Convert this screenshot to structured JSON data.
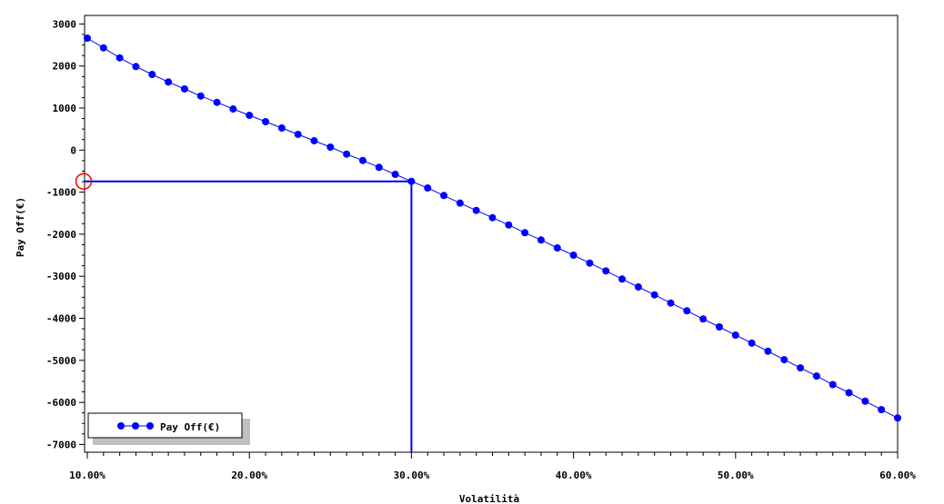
{
  "chart_data": {
    "type": "line",
    "title": "",
    "xlabel": "Volatilità",
    "ylabel": "Pay Off(€)",
    "xlim": [
      9.9,
      60
    ],
    "ylim": [
      -7100,
      3200
    ],
    "x_ticks": [
      10,
      20,
      30,
      40,
      50,
      60
    ],
    "x_tick_labels": [
      "10.00%",
      "20.00%",
      "30.00%",
      "40.00%",
      "50.00%",
      "60.00%"
    ],
    "y_ticks": [
      3000,
      2000,
      1000,
      0,
      -1000,
      -2000,
      -3000,
      -4000,
      -5000,
      -6000,
      -7000
    ],
    "y_tick_labels": [
      "3000",
      "2000",
      "1000",
      "0",
      "-1000",
      "-2000",
      "-3000",
      "-4000",
      "-5000",
      "-6000",
      "-7000"
    ],
    "grid": false,
    "legend": {
      "placement": "bottom-left",
      "entries": [
        "Pay Off(€)"
      ]
    },
    "series": [
      {
        "name": "Pay Off(€)",
        "color": "#0000ff",
        "marker": "circle",
        "x": [
          10,
          11,
          12,
          13,
          14,
          15,
          16,
          17,
          18,
          19,
          20,
          21,
          22,
          23,
          24,
          25,
          26,
          27,
          28,
          29,
          30,
          31,
          32,
          33,
          34,
          35,
          36,
          37,
          38,
          39,
          40,
          41,
          42,
          43,
          44,
          45,
          46,
          47,
          48,
          49,
          50,
          51,
          52,
          53,
          54,
          55,
          56,
          57,
          58,
          59,
          60
        ],
        "y": [
          2663,
          2432,
          2194,
          1987,
          1799,
          1620,
          1454,
          1287,
          1136,
          978,
          827,
          676,
          525,
          374,
          222,
          71,
          -95,
          -246,
          -410,
          -577,
          -743,
          -901,
          -1080,
          -1261,
          -1434,
          -1607,
          -1780,
          -1965,
          -2138,
          -2326,
          -2499,
          -2687,
          -2873,
          -3067,
          -3255,
          -3443,
          -3637,
          -3823,
          -4017,
          -4205,
          -4400,
          -4590,
          -4784,
          -4985,
          -5179,
          -5374,
          -5577,
          -5771,
          -5972,
          -6173,
          -6371
        ]
      }
    ],
    "annotations": [
      {
        "type": "reference-lines",
        "x": 30,
        "y": -743,
        "color": "#0000ff"
      },
      {
        "type": "highlight-circle",
        "x": 9.9,
        "y": -743,
        "color": "#ff0000"
      }
    ]
  }
}
